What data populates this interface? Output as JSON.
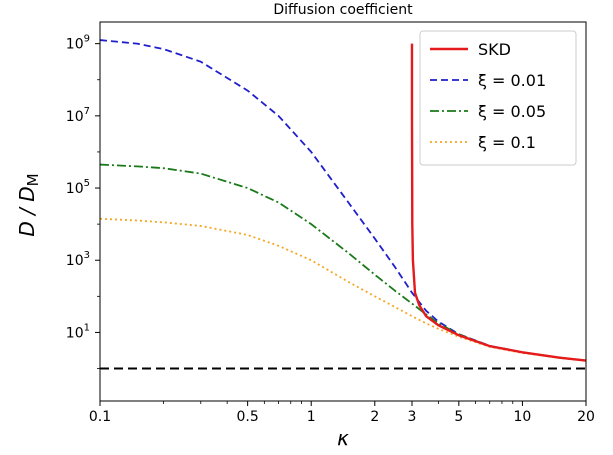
{
  "chart_data": {
    "type": "line",
    "title": "Diffusion coefficient",
    "xlabel": "κ",
    "ylabel_main": "D / D",
    "ylabel_sub": "M",
    "xscale": "log",
    "yscale": "log",
    "xlim": [
      0.1,
      20
    ],
    "ylim_log10": [
      -0.9,
      9.6
    ],
    "x_ticks": [
      0.1,
      0.5,
      1,
      2,
      3,
      5,
      10,
      20
    ],
    "x_tick_labels": [
      "0.1",
      "0.5",
      "1",
      "2",
      "3",
      "5",
      "10",
      "20"
    ],
    "y_ticks_log10": [
      1,
      3,
      5,
      7,
      9
    ],
    "y_tick_base": "10",
    "y_tick_exponents": [
      "1",
      "3",
      "5",
      "7",
      "9"
    ],
    "legend_position": "top-right",
    "reference_line": {
      "y": 1,
      "style": "dashed",
      "color": "#000000"
    },
    "series": [
      {
        "name": "SKD",
        "color": "#e41a1c",
        "style": "solid",
        "x": [
          3.0,
          3.0,
          3.005,
          3.01,
          3.03,
          3.1,
          3.25,
          3.5,
          4,
          5,
          7,
          10,
          15,
          20
        ],
        "log10_y": [
          9.0,
          7.0,
          5.5,
          4.0,
          3.0,
          2.1,
          1.75,
          1.45,
          1.2,
          0.92,
          0.62,
          0.45,
          0.3,
          0.22
        ]
      },
      {
        "name": "ξ = 0.01",
        "color": "#1f1fcc",
        "style": "dashed",
        "x": [
          0.1,
          0.15,
          0.2,
          0.3,
          0.5,
          0.7,
          1,
          1.5,
          2,
          2.5,
          3,
          3.5,
          4,
          5,
          7,
          10,
          15,
          20
        ],
        "log10_y": [
          9.1,
          9.0,
          8.85,
          8.5,
          7.7,
          7.0,
          6.0,
          4.6,
          3.6,
          2.8,
          2.1,
          1.6,
          1.3,
          0.95,
          0.63,
          0.45,
          0.3,
          0.22
        ]
      },
      {
        "name": "ξ = 0.05",
        "color": "#1a7a1a",
        "style": "dashdot",
        "x": [
          0.1,
          0.15,
          0.2,
          0.3,
          0.5,
          0.7,
          1,
          1.5,
          2,
          2.5,
          3,
          3.5,
          4,
          5,
          7,
          10,
          15,
          20
        ],
        "log10_y": [
          5.65,
          5.6,
          5.55,
          5.4,
          5.0,
          4.6,
          4.0,
          3.2,
          2.6,
          2.15,
          1.8,
          1.5,
          1.25,
          0.95,
          0.62,
          0.45,
          0.3,
          0.22
        ]
      },
      {
        "name": "ξ = 0.1",
        "color": "#f5a623",
        "style": "dotted",
        "x": [
          0.1,
          0.15,
          0.2,
          0.3,
          0.5,
          0.7,
          1,
          1.5,
          2,
          2.5,
          3,
          3.5,
          4,
          5,
          7,
          10,
          15,
          20
        ],
        "log10_y": [
          4.15,
          4.1,
          4.05,
          3.95,
          3.7,
          3.4,
          3.0,
          2.4,
          2.0,
          1.7,
          1.45,
          1.25,
          1.1,
          0.88,
          0.6,
          0.43,
          0.29,
          0.21
        ]
      }
    ]
  }
}
